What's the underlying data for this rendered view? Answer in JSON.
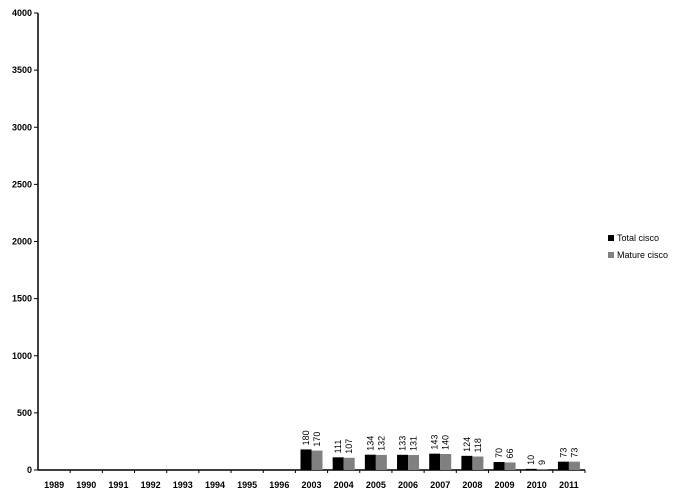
{
  "chart_data": {
    "type": "bar",
    "categories": [
      "1989",
      "1990",
      "1991",
      "1992",
      "1993",
      "1994",
      "1995",
      "1996",
      "2003",
      "2004",
      "2005",
      "2006",
      "2007",
      "2008",
      "2009",
      "2010",
      "2011"
    ],
    "series": [
      {
        "name": "Total cisco",
        "color": "#000000",
        "values": [
          null,
          null,
          null,
          null,
          null,
          null,
          null,
          null,
          180,
          111,
          134,
          133,
          143,
          124,
          70,
          10,
          73
        ]
      },
      {
        "name": "Mature cisco",
        "color": "#808080",
        "values": [
          null,
          null,
          null,
          null,
          null,
          null,
          null,
          null,
          170,
          107,
          132,
          131,
          140,
          118,
          66,
          9,
          73
        ]
      }
    ],
    "ylim": [
      0,
      4000
    ],
    "yticks": [
      0,
      500,
      1000,
      1500,
      2000,
      2500,
      3000,
      3500,
      4000
    ],
    "legend_position": "right",
    "grid": false
  }
}
